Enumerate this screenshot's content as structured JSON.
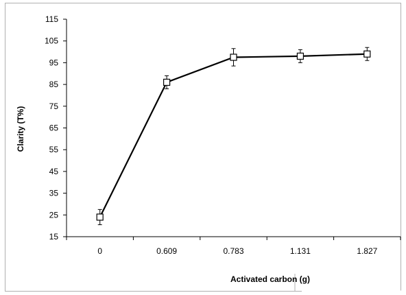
{
  "chart_data": {
    "type": "line",
    "categories": [
      "0",
      "0.609",
      "0.783",
      "1.131",
      "1.827"
    ],
    "series": [
      {
        "values": [
          24,
          86,
          97.5,
          98,
          99
        ],
        "error": [
          3.5,
          3,
          4,
          3,
          3
        ],
        "color": "#000000",
        "marker": "open-square"
      }
    ],
    "xlabel": "Activated carbon (g)",
    "ylabel": "Clarity (T%)",
    "ylim": [
      15,
      115
    ],
    "yticks": [
      "115",
      "105",
      "95",
      "85",
      "75",
      "65",
      "55",
      "45",
      "35",
      "25",
      "15"
    ],
    "grid": false,
    "legend": "none"
  }
}
